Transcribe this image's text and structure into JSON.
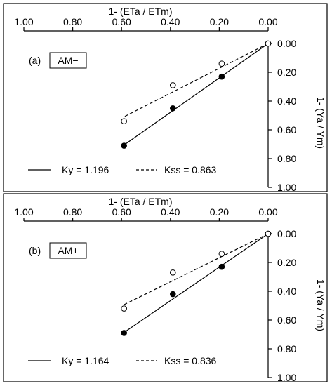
{
  "chart_data": [
    {
      "type": "line",
      "panel_label": "(a)",
      "treatment": "AM−",
      "xlabel": "1- (ETa / ETm)",
      "ylabel": "1- (Ya / Ym)",
      "x_ticks": [
        "1.00",
        "0.80",
        "0.60",
        "0.40",
        "0.20",
        "0.00"
      ],
      "y_ticks": [
        "0.00",
        "0.20",
        "0.40",
        "0.60",
        "0.80",
        "1.00"
      ],
      "xlim": [
        1.0,
        0.0
      ],
      "ylim": [
        0.0,
        1.0
      ],
      "x_reversed": true,
      "y_reversed": true,
      "grid": false,
      "legend_position": "bottom",
      "series": [
        {
          "name": "Ky = 1.196",
          "marker": "filled-circle",
          "line": "solid",
          "points": [
            [
              0.0,
              0.0
            ],
            [
              0.19,
              0.23
            ],
            [
              0.39,
              0.45
            ],
            [
              0.59,
              0.71
            ]
          ],
          "fit_slope": 1.196,
          "fit_x": [
            0.0,
            0.59
          ]
        },
        {
          "name": "Kss = 0.863",
          "marker": "open-circle",
          "line": "dashed",
          "points": [
            [
              0.0,
              0.0
            ],
            [
              0.19,
              0.14
            ],
            [
              0.39,
              0.29
            ],
            [
              0.59,
              0.54
            ]
          ],
          "fit_slope": 0.863,
          "fit_x": [
            0.0,
            0.59
          ]
        }
      ]
    },
    {
      "type": "line",
      "panel_label": "(b)",
      "treatment": "AM+",
      "xlabel": "1- (ETa / ETm)",
      "ylabel": "1- (Ya / Ym)",
      "x_ticks": [
        "1.00",
        "0.80",
        "0.60",
        "0.40",
        "0.20",
        "0.00"
      ],
      "y_ticks": [
        "0.00",
        "0.20",
        "0.40",
        "0.60",
        "0.80",
        "1.00"
      ],
      "xlim": [
        1.0,
        0.0
      ],
      "ylim": [
        0.0,
        1.0
      ],
      "x_reversed": true,
      "y_reversed": true,
      "grid": false,
      "legend_position": "bottom",
      "series": [
        {
          "name": "Ky = 1.164",
          "marker": "filled-circle",
          "line": "solid",
          "points": [
            [
              0.0,
              0.0
            ],
            [
              0.19,
              0.23
            ],
            [
              0.39,
              0.42
            ],
            [
              0.59,
              0.69
            ]
          ],
          "fit_slope": 1.164,
          "fit_x": [
            0.0,
            0.59
          ]
        },
        {
          "name": "Kss = 0.836",
          "marker": "open-circle",
          "line": "dashed",
          "points": [
            [
              0.0,
              0.0
            ],
            [
              0.19,
              0.14
            ],
            [
              0.39,
              0.27
            ],
            [
              0.59,
              0.52
            ]
          ],
          "fit_slope": 0.836,
          "fit_x": [
            0.0,
            0.59
          ]
        }
      ]
    }
  ]
}
